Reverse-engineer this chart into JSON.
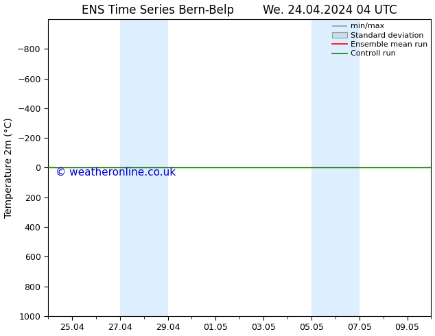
{
  "title_left": "ENS Time Series Bern-Belp",
  "title_right": "We. 24.04.2024 04 UTC",
  "ylabel": "Temperature 2m (°C)",
  "watermark": "© weatheronline.co.uk",
  "ylim_bottom": 1000,
  "ylim_top": -1000,
  "yticks": [
    -800,
    -600,
    -400,
    -200,
    0,
    200,
    400,
    600,
    800,
    1000
  ],
  "xtick_labels": [
    "25.04",
    "27.04",
    "29.04",
    "01.05",
    "03.05",
    "05.05",
    "07.05",
    "09.05"
  ],
  "xtick_positions_days": [
    1,
    3,
    5,
    7,
    9,
    11,
    13,
    15
  ],
  "shaded_bands": [
    {
      "x_start_day": 3.0,
      "x_end_day": 4.0
    },
    {
      "x_start_day": 4.0,
      "x_end_day": 5.0
    },
    {
      "x_start_day": 11.0,
      "x_end_day": 12.0
    },
    {
      "x_start_day": 12.0,
      "x_end_day": 13.0
    }
  ],
  "control_run_y": 0,
  "control_run_color": "#008000",
  "ensemble_mean_color": "#ff0000",
  "background_color": "#ffffff",
  "shaded_color": "#ddeeff",
  "title_fontsize": 12,
  "axis_label_fontsize": 10,
  "tick_fontsize": 9,
  "watermark_fontsize": 11,
  "watermark_color": "#0000cc",
  "legend_fontsize": 8
}
